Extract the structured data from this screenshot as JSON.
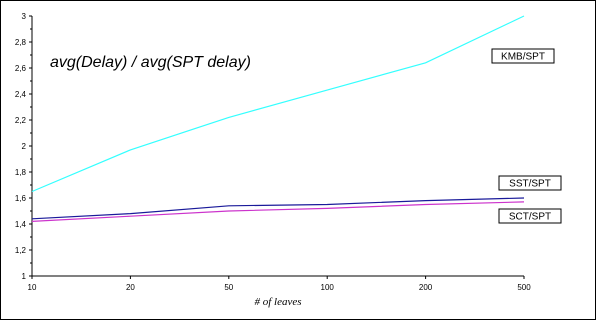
{
  "chart_data": {
    "type": "line",
    "title": "avg(Delay) / avg(SPT delay)",
    "xlabel": "# of leaves",
    "ylabel": "",
    "categories": [
      "10",
      "20",
      "50",
      "100",
      "200",
      "500"
    ],
    "yticks": [
      "1",
      "1,2",
      "1,4",
      "1,6",
      "1,8",
      "2",
      "2,2",
      "2,4",
      "2,6",
      "2,8",
      "3"
    ],
    "ylim": [
      1,
      3
    ],
    "grid": false,
    "legend_style": "boxed labels at line ends",
    "series": [
      {
        "name": "KMB/SPT",
        "color": "#33ffff",
        "values": [
          1.65,
          1.97,
          2.22,
          2.43,
          2.64,
          3.0
        ]
      },
      {
        "name": "SST/SPT",
        "color": "#1a1a9a",
        "values": [
          1.44,
          1.48,
          1.54,
          1.55,
          1.58,
          1.6
        ]
      },
      {
        "name": "SCT/SPT",
        "color": "#cc33cc",
        "values": [
          1.42,
          1.46,
          1.5,
          1.52,
          1.55,
          1.57
        ]
      }
    ]
  }
}
